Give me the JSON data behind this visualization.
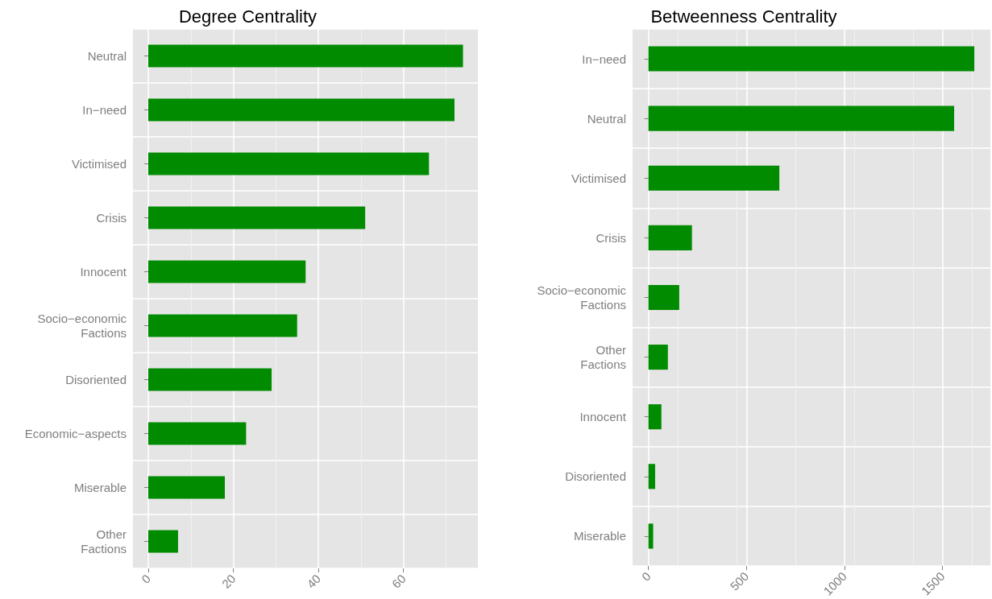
{
  "chart_data": [
    {
      "type": "bar",
      "orientation": "horizontal",
      "title": "Degree Centrality",
      "categories": [
        "Neutral",
        "In−need",
        "Victimised",
        "Crisis",
        "Innocent",
        "Socio−economic\nFactions",
        "Disoriented",
        "Economic−aspects",
        "Miserable",
        "Other\nFactions"
      ],
      "values": [
        74,
        72,
        66,
        51,
        37,
        35,
        29,
        23,
        18,
        7
      ],
      "color": "#008b00",
      "xlim": [
        -3.6,
        77.5
      ],
      "xticks": [
        0,
        20,
        40,
        60
      ],
      "grid": true
    },
    {
      "type": "bar",
      "orientation": "horizontal",
      "title": "Betweenness Centrality",
      "categories": [
        "In−need",
        "Neutral",
        "Victimised",
        "Crisis",
        "Socio−economic\nFactions",
        "Other\nFactions",
        "Innocent",
        "Disoriented",
        "Miserable"
      ],
      "values": [
        1663,
        1560,
        668,
        222,
        157,
        99,
        66,
        34,
        24
      ],
      "color": "#008b00",
      "xlim": [
        -81,
        1745
      ],
      "xticks": [
        0,
        500,
        1000,
        1500
      ],
      "grid": true
    }
  ]
}
